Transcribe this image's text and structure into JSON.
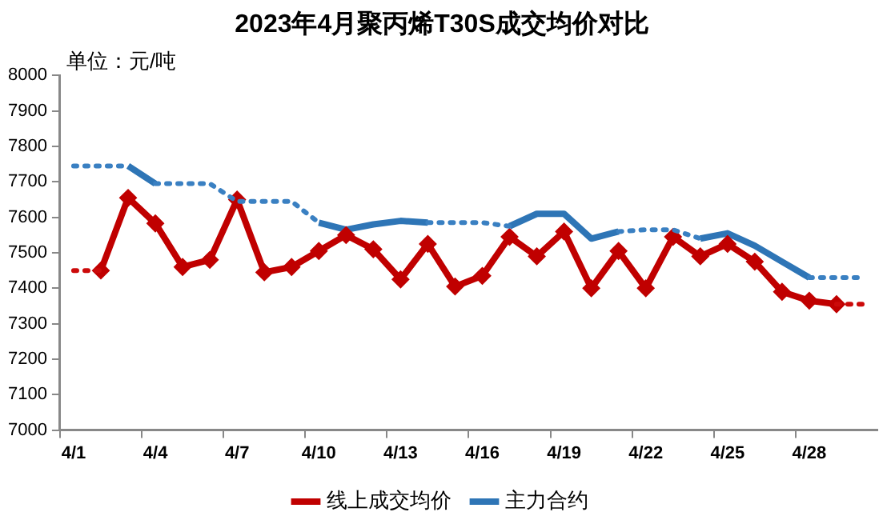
{
  "chart_data": {
    "type": "line",
    "title": "2023年4月聚丙烯T30S成交均价对比",
    "ylabel": "单位：元/吨",
    "categories": [
      "4/1",
      null,
      null,
      "4/4",
      null,
      null,
      "4/7",
      null,
      null,
      "4/10",
      null,
      null,
      "4/13",
      null,
      null,
      "4/16",
      null,
      null,
      "4/19",
      null,
      null,
      "4/22",
      null,
      null,
      "4/25",
      null,
      null,
      "4/28",
      null,
      null
    ],
    "ylim": [
      7000,
      8000
    ],
    "yticks": [
      7000,
      7100,
      7200,
      7300,
      7400,
      7500,
      7600,
      7700,
      7800,
      7900,
      8000
    ],
    "grid": false,
    "legend": "bottom",
    "series": [
      {
        "color": "#cc0a0a",
        "line_style": "dotted",
        "marker": "none",
        "values": [
          7450,
          7450,
          null,
          null,
          null,
          null,
          null,
          null,
          null,
          null,
          null,
          null,
          null,
          null,
          null,
          null,
          null,
          null,
          null,
          null,
          null,
          null,
          null,
          null,
          null,
          null,
          null,
          null,
          7355,
          7355
        ]
      },
      {
        "color": "#3a80c2",
        "line_style": "dotted",
        "marker": "none",
        "values": [
          7745,
          7745,
          7745,
          null,
          null,
          null,
          null,
          null,
          null,
          null,
          null,
          null,
          null,
          7585,
          7585,
          7585,
          7575,
          null,
          null,
          null,
          null,
          null,
          null,
          null,
          null,
          null,
          null,
          7430,
          7430,
          7430
        ]
      },
      {
        "color": "#3a80c2",
        "line_style": "dotted",
        "marker": "none",
        "values": [
          null,
          null,
          null,
          7695,
          7695,
          7695,
          7645,
          7645,
          7645,
          7585,
          null,
          null,
          null,
          null,
          null,
          null,
          null,
          null,
          null,
          null,
          7560,
          7565,
          7565,
          7540,
          null,
          null,
          null,
          null,
          null,
          null
        ]
      },
      {
        "name": "线上成交均价",
        "color": "#c00000",
        "line_style": "solid",
        "marker": "diamond",
        "values": [
          null,
          7450,
          7655,
          7583,
          7460,
          7480,
          7650,
          7445,
          7460,
          7505,
          7550,
          7510,
          7425,
          7525,
          7405,
          7435,
          7545,
          7490,
          7560,
          7400,
          7505,
          7400,
          7545,
          7490,
          7525,
          7475,
          7390,
          7365,
          7355,
          null
        ]
      },
      {
        "name": "主力合约",
        "color": "#2e75b6",
        "line_style": "solid",
        "marker": "none",
        "values": [
          null,
          null,
          7745,
          7695,
          null,
          null,
          null,
          null,
          null,
          7585,
          7565,
          7580,
          7590,
          7585,
          null,
          null,
          7575,
          7610,
          7610,
          7540,
          7560,
          null,
          null,
          7540,
          7555,
          7520,
          7475,
          7430,
          null,
          null
        ]
      }
    ]
  }
}
